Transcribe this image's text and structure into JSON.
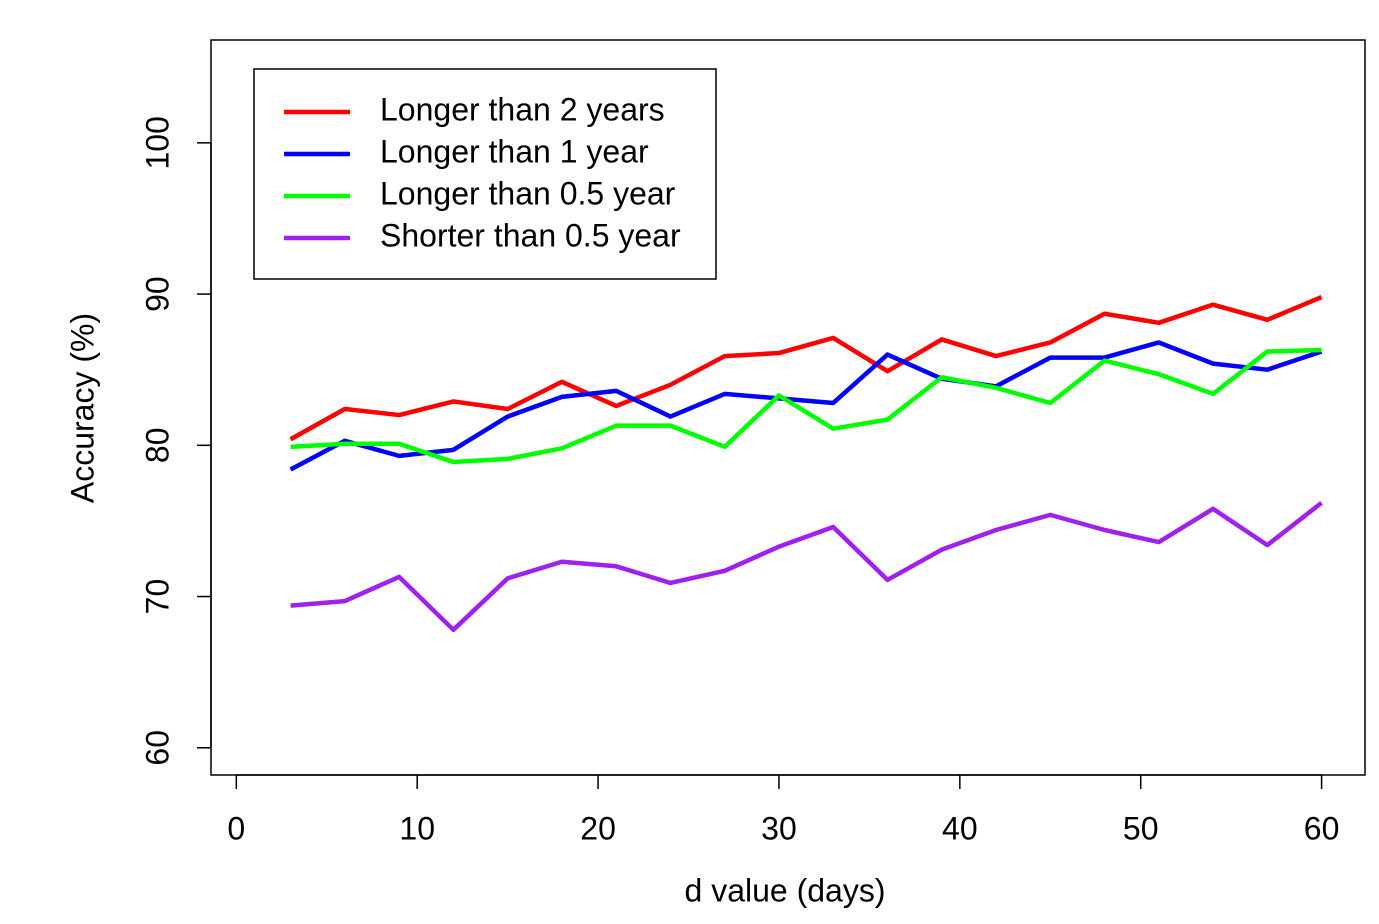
{
  "chart_data": {
    "type": "line",
    "x_label": "d value (days)",
    "y_label": "Accuracy (%)",
    "x": [
      3,
      6,
      9,
      12,
      15,
      18,
      21,
      24,
      27,
      30,
      33,
      36,
      39,
      42,
      45,
      48,
      51,
      54,
      57,
      60
    ],
    "series": [
      {
        "name": "Longer than 2 years",
        "color": "#ff0000",
        "values": [
          80.4,
          82.4,
          82.0,
          82.9,
          82.4,
          84.2,
          82.6,
          84.0,
          85.9,
          86.1,
          87.1,
          84.9,
          87.0,
          85.9,
          86.8,
          88.7,
          88.1,
          89.3,
          88.3,
          89.8
        ]
      },
      {
        "name": "Longer than 1 year",
        "color": "#0000ff",
        "values": [
          78.4,
          80.3,
          79.3,
          79.7,
          81.9,
          83.2,
          83.6,
          81.9,
          83.4,
          83.1,
          82.8,
          86.0,
          84.4,
          83.9,
          85.8,
          85.8,
          86.8,
          85.4,
          85.0,
          86.2
        ]
      },
      {
        "name": "Longer than 0.5 year",
        "color": "#00ff00",
        "values": [
          79.9,
          80.1,
          80.1,
          78.9,
          79.1,
          79.8,
          81.3,
          81.3,
          79.9,
          83.3,
          81.1,
          81.7,
          84.5,
          83.8,
          82.8,
          85.6,
          84.7,
          83.4,
          86.2,
          86.3
        ]
      },
      {
        "name": "Shorter than 0.5 year",
        "color": "#a020f0",
        "values": [
          69.4,
          69.7,
          71.3,
          67.8,
          71.2,
          72.3,
          72.0,
          70.9,
          71.7,
          73.3,
          74.6,
          71.1,
          73.1,
          74.4,
          75.4,
          74.4,
          73.6,
          75.8,
          73.4,
          76.2
        ]
      }
    ],
    "xlim": [
      -1.4,
      62.4
    ],
    "xticks": [
      0,
      10,
      20,
      30,
      40,
      50,
      60
    ],
    "ylim": [
      58.2,
      106.8
    ],
    "yticks": [
      60,
      70,
      80,
      90,
      100
    ],
    "legend": "top-left"
  }
}
